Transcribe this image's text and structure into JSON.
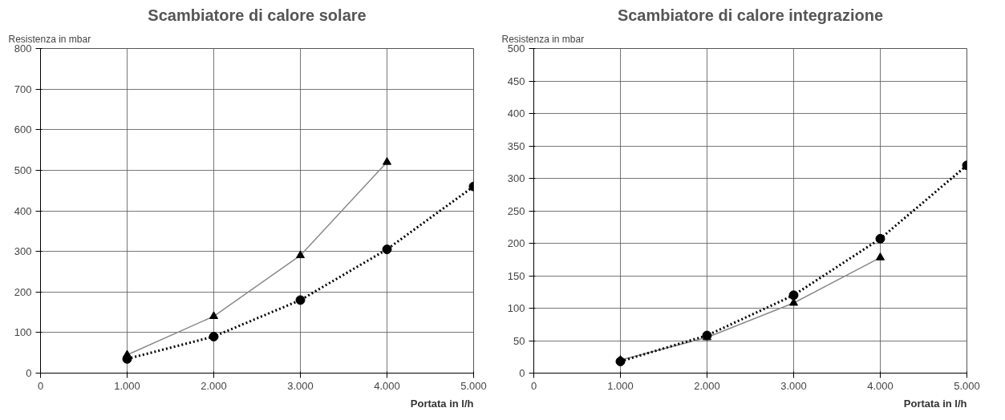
{
  "chart_data": [
    {
      "type": "line",
      "title": "Scambiatore di calore solare",
      "ylabel": "Resistenza in mbar",
      "xlabel": "Portata in l/h",
      "xlim": [
        0,
        5000
      ],
      "ylim": [
        0,
        800
      ],
      "xticks": [
        {
          "value": 0,
          "label": "0"
        },
        {
          "value": 1000,
          "label": "1.000"
        },
        {
          "value": 2000,
          "label": "2.000"
        },
        {
          "value": 3000,
          "label": "3.000"
        },
        {
          "value": 4000,
          "label": "4.000"
        },
        {
          "value": 5000,
          "label": "5.000"
        }
      ],
      "yticks": [
        0,
        100,
        200,
        300,
        400,
        500,
        600,
        700,
        800
      ],
      "grid": true,
      "series": [
        {
          "color": "#8a8a8a",
          "marker": "triangle",
          "line_style": "solid",
          "x": [
            1000,
            2000,
            3000,
            4000
          ],
          "values": [
            45,
            140,
            290,
            520
          ]
        },
        {
          "color": "#000000",
          "marker": "circle",
          "line_style": "dotted",
          "x": [
            1000,
            2000,
            3000,
            4000,
            5000
          ],
          "values": [
            35,
            90,
            180,
            305,
            460
          ]
        }
      ]
    },
    {
      "type": "line",
      "title": "Scambiatore di calore integrazione",
      "ylabel": "Resistenza in mbar",
      "xlabel": "Portata in l/h",
      "xlim": [
        0,
        5000
      ],
      "ylim": [
        0,
        500
      ],
      "xticks": [
        {
          "value": 0,
          "label": "0"
        },
        {
          "value": 1000,
          "label": "1.000"
        },
        {
          "value": 2000,
          "label": "2.000"
        },
        {
          "value": 3000,
          "label": "3.000"
        },
        {
          "value": 4000,
          "label": "4.000"
        },
        {
          "value": 5000,
          "label": "5.000"
        }
      ],
      "yticks": [
        0,
        50,
        100,
        150,
        200,
        250,
        300,
        350,
        400,
        450,
        500
      ],
      "grid": true,
      "series": [
        {
          "color": "#8a8a8a",
          "marker": "triangle",
          "line_style": "solid",
          "x": [
            1000,
            2000,
            3000,
            4000
          ],
          "values": [
            20,
            55,
            108,
            178
          ]
        },
        {
          "color": "#000000",
          "marker": "circle",
          "line_style": "dotted",
          "x": [
            1000,
            2000,
            3000,
            4000,
            5000
          ],
          "values": [
            18,
            58,
            120,
            207,
            320
          ]
        }
      ]
    }
  ]
}
